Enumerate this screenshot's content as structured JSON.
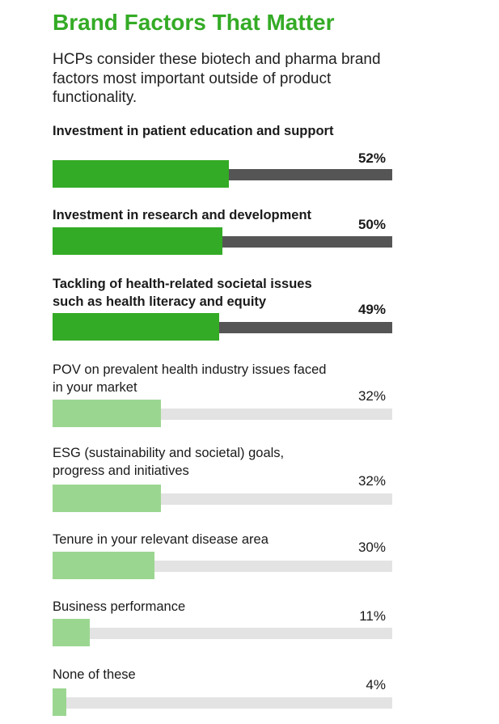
{
  "chart_data": {
    "type": "bar",
    "orientation": "horizontal",
    "title": "Brand Factors That Matter",
    "subtitle": "HCPs consider these biotech and pharma brand factors most important outside of product functionality.",
    "xlim": [
      0,
      100
    ],
    "categories": [
      "Investment in patient education and support",
      "Investment in research and development",
      "Tackling of health-related societal issues such as health literacy and equity",
      "POV on prevalent health industry issues faced in your market",
      "ESG (sustainability and societal) goals, progress and initiatives",
      "Tenure in your relevant disease area",
      "Business performance",
      "None of these"
    ],
    "values": [
      52,
      50,
      49,
      32,
      32,
      30,
      11,
      4
    ],
    "value_labels": [
      "52%",
      "50%",
      "49%",
      "32%",
      "32%",
      "30%",
      "11%",
      "4%"
    ],
    "highlighted_top": 3,
    "colors": {
      "highlight": "#34ab26",
      "highlight_track": "#555555",
      "normal": "#9bd691",
      "normal_track": "#e3e3e3",
      "title": "#34ab26"
    }
  }
}
